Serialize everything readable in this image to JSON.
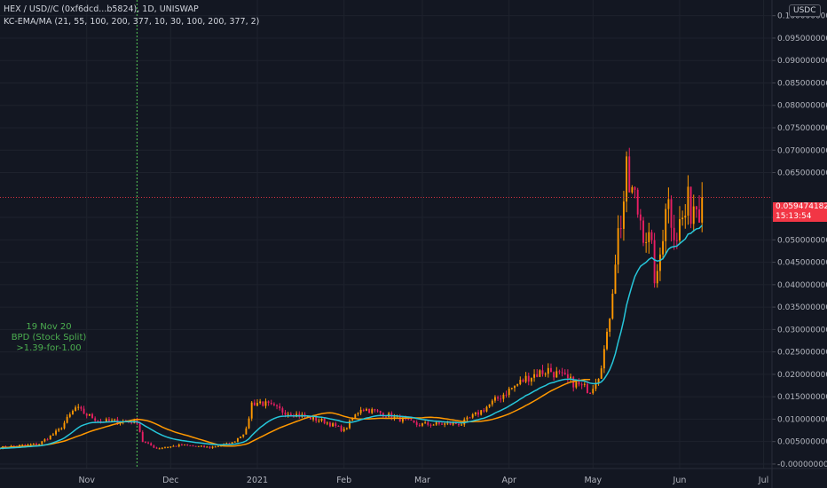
{
  "legend": {
    "symbol": "HEX / USD//C (0xf6dcd...b5824), 1D, UNISWAP",
    "indicator": "KC-EMA/MA (21, 55, 100, 200, 377, 10, 30, 100, 200, 377, 2)"
  },
  "currency_badge": "USDC",
  "price_tag": {
    "price": "0.0594741829",
    "countdown": "15:13:54"
  },
  "annotation": {
    "date": "19 Nov 20",
    "event": "BPD (Stock Split)",
    "ratio": ">1.39-for-1.00"
  },
  "colors": {
    "background": "#131722",
    "bull": "#ff9800",
    "bear": "#e91e63",
    "ema": "#26c6da",
    "ma": "#ff9800",
    "marker": "#4caf50",
    "price_line": "#f23645"
  },
  "chart_data": {
    "type": "candlestick",
    "x_axis": {
      "start_date": "2020-10-01",
      "end_date": "2021-07-04",
      "tick_labels": [
        {
          "label": "Nov",
          "date": "2020-11-01"
        },
        {
          "label": "Dec",
          "date": "2020-12-01"
        },
        {
          "label": "2021",
          "date": "2021-01-01"
        },
        {
          "label": "Feb",
          "date": "2021-02-01"
        },
        {
          "label": "Mar",
          "date": "2021-03-01"
        },
        {
          "label": "Apr",
          "date": "2021-04-01"
        },
        {
          "label": "May",
          "date": "2021-05-01"
        },
        {
          "label": "Jun",
          "date": "2021-06-01"
        },
        {
          "label": "Jul",
          "date": "2021-07-01"
        }
      ]
    },
    "y_axis": {
      "range": [
        -0.001,
        0.1035
      ],
      "tick_labels": [
        {
          "label": "-0.0000000000",
          "value": 0.0
        },
        {
          "label": "0.0050000000",
          "value": 0.005
        },
        {
          "label": "0.0100000000",
          "value": 0.01
        },
        {
          "label": "0.0150000000",
          "value": 0.015
        },
        {
          "label": "0.0200000000",
          "value": 0.02
        },
        {
          "label": "0.0250000000",
          "value": 0.025
        },
        {
          "label": "0.0300000000",
          "value": 0.03
        },
        {
          "label": "0.0350000000",
          "value": 0.035
        },
        {
          "label": "0.0400000000",
          "value": 0.04
        },
        {
          "label": "0.0450000000",
          "value": 0.045
        },
        {
          "label": "0.0500000000",
          "value": 0.05
        },
        {
          "label": "0.0550000000",
          "value": 0.055
        },
        {
          "label": "0.0650000000",
          "value": 0.065
        },
        {
          "label": "0.0700000000",
          "value": 0.07
        },
        {
          "label": "0.0750000000",
          "value": 0.075
        },
        {
          "label": "0.0800000000",
          "value": 0.08
        },
        {
          "label": "0.0850000000",
          "value": 0.085
        },
        {
          "label": "0.0900000000",
          "value": 0.09
        },
        {
          "label": "0.0950000000",
          "value": 0.095
        },
        {
          "label": "0.1000000000",
          "value": 0.1
        }
      ]
    },
    "current_price": 0.0594741829,
    "event_marker_date": "2020-11-19",
    "anchors": [
      {
        "date": "2020-10-01",
        "close": 0.0037
      },
      {
        "date": "2020-10-15",
        "close": 0.0045
      },
      {
        "date": "2020-10-22",
        "close": 0.0075
      },
      {
        "date": "2020-10-28",
        "close": 0.0125
      },
      {
        "date": "2020-11-01",
        "close": 0.011
      },
      {
        "date": "2020-11-06",
        "close": 0.0095
      },
      {
        "date": "2020-11-15",
        "close": 0.0095
      },
      {
        "date": "2020-11-19",
        "close": 0.0095
      },
      {
        "date": "2020-11-21",
        "close": 0.005
      },
      {
        "date": "2020-11-26",
        "close": 0.0035
      },
      {
        "date": "2020-12-05",
        "close": 0.0042
      },
      {
        "date": "2020-12-15",
        "close": 0.0037
      },
      {
        "date": "2020-12-23",
        "close": 0.0047
      },
      {
        "date": "2020-12-28",
        "close": 0.0075
      },
      {
        "date": "2020-12-30",
        "close": 0.0135
      },
      {
        "date": "2021-01-02",
        "close": 0.0138
      },
      {
        "date": "2021-01-10",
        "close": 0.0118
      },
      {
        "date": "2021-01-25",
        "close": 0.0095
      },
      {
        "date": "2021-02-01",
        "close": 0.0075
      },
      {
        "date": "2021-02-07",
        "close": 0.0125
      },
      {
        "date": "2021-02-15",
        "close": 0.0112
      },
      {
        "date": "2021-02-27",
        "close": 0.0088
      },
      {
        "date": "2021-03-15",
        "close": 0.009
      },
      {
        "date": "2021-03-22",
        "close": 0.0118
      },
      {
        "date": "2021-04-01",
        "close": 0.0165
      },
      {
        "date": "2021-04-08",
        "close": 0.0195
      },
      {
        "date": "2021-04-15",
        "close": 0.021
      },
      {
        "date": "2021-04-25",
        "close": 0.0178
      },
      {
        "date": "2021-04-30",
        "close": 0.0165
      },
      {
        "date": "2021-05-03",
        "close": 0.02
      },
      {
        "date": "2021-05-06",
        "close": 0.028
      },
      {
        "date": "2021-05-09",
        "close": 0.047
      },
      {
        "date": "2021-05-13",
        "close": 0.063
      },
      {
        "date": "2021-05-20",
        "close": 0.052
      },
      {
        "date": "2021-05-24",
        "close": 0.04
      },
      {
        "date": "2021-05-27",
        "close": 0.06
      },
      {
        "date": "2021-05-31",
        "close": 0.052
      },
      {
        "date": "2021-06-05",
        "close": 0.058
      },
      {
        "date": "2021-06-09",
        "close": 0.0595
      }
    ],
    "series": [
      {
        "name": "KC-EMA/MA",
        "kind": "ema"
      },
      {
        "name": "KC-EMA/MA",
        "kind": "ma"
      }
    ]
  }
}
